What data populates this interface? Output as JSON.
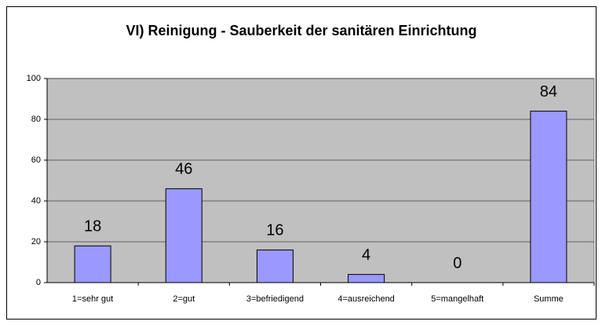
{
  "chart_data": {
    "type": "bar",
    "title": "VI) Reinigung - Sauberkeit der sanitären Einrichtung",
    "categories": [
      "1=sehr gut",
      "2=gut",
      "3=befriedigend",
      "4=ausreichend",
      "5=mangelhaft",
      "Summe"
    ],
    "values": [
      18,
      46,
      16,
      4,
      0,
      84
    ],
    "color": "#9999ff",
    "ylim": [
      0,
      100
    ],
    "yticks": [
      0,
      20,
      40,
      60,
      80,
      100
    ],
    "grid": true
  }
}
